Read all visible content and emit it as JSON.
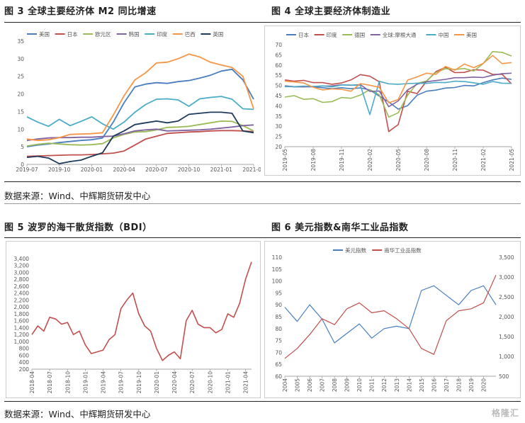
{
  "figures": {
    "fig3_title": "图 3  全球主要经济体 M2 同比增速",
    "fig4_title": "图 4  全球主要经济体制造业",
    "fig5_title": "图 5  波罗的海干散货指数（BDI）",
    "fig6_title": "图 6  美元指数&南华工业品指数"
  },
  "source_top": "数据来源：Wind、中辉期货研发中心",
  "source_bottom": "数据来源：Wind、中辉期货研发中心",
  "watermark": "格隆汇",
  "colors": {
    "blue": "#4a7ebf",
    "red": "#c0504d",
    "green": "#9bbb59",
    "purple": "#8064a2",
    "cyan": "#4bacc6",
    "orange": "#f79646",
    "navy": "#1f3a5c"
  },
  "chart_data": [
    {
      "id": "fig3",
      "type": "line",
      "title": "",
      "x": [
        "2019-07",
        "2019-08",
        "2019-09",
        "2019-10",
        "2019-11",
        "2019-12",
        "2020-01",
        "2020-02",
        "2020-03",
        "2020-04",
        "2020-05",
        "2020-06",
        "2020-07",
        "2020-08",
        "2020-09",
        "2020-10",
        "2020-11",
        "2020-12",
        "2021-01",
        "2021-02",
        "2021-03",
        "2021-04"
      ],
      "x_ticks": [
        "2019-07",
        "2019-10",
        "2020-01",
        "2020-04",
        "2020-07",
        "2020-10",
        "2021-01",
        "2021-04"
      ],
      "ylim": [
        0,
        35
      ],
      "y_ticks": [
        0,
        5,
        10,
        15,
        20,
        25,
        30,
        35
      ],
      "legend_position": "top",
      "series": [
        {
          "name": "美国",
          "color": "blue",
          "values": [
            5.0,
            5.5,
            5.8,
            6.2,
            6.5,
            6.8,
            7.0,
            7.5,
            12.0,
            17.5,
            22.0,
            22.8,
            23.2,
            23.0,
            23.5,
            23.8,
            24.5,
            25.3,
            26.5,
            27.0,
            24.0,
            18.5
          ]
        },
        {
          "name": "日本",
          "color": "red",
          "values": [
            2.3,
            2.4,
            2.5,
            2.6,
            2.7,
            2.7,
            2.8,
            3.0,
            3.2,
            3.8,
            5.5,
            7.2,
            8.0,
            8.8,
            9.0,
            9.2,
            9.3,
            9.5,
            9.6,
            9.6,
            9.5,
            9.3
          ]
        },
        {
          "name": "欧元区",
          "color": "green",
          "values": [
            5.2,
            5.7,
            6.0,
            5.8,
            5.6,
            5.5,
            5.6,
            5.9,
            7.5,
            8.5,
            9.2,
            9.3,
            9.8,
            10.5,
            10.6,
            10.8,
            11.3,
            11.8,
            12.3,
            12.2,
            11.0,
            9.5
          ]
        },
        {
          "name": "韩国",
          "color": "purple",
          "values": [
            6.8,
            7.2,
            7.5,
            7.6,
            7.6,
            7.7,
            7.7,
            7.9,
            8.0,
            8.7,
            9.5,
            9.8,
            10.0,
            9.5,
            9.6,
            9.7,
            9.8,
            10.0,
            10.3,
            10.6,
            11.0,
            11.2
          ]
        },
        {
          "name": "印度",
          "color": "cyan",
          "values": [
            13.5,
            12.0,
            10.8,
            12.8,
            11.0,
            12.2,
            13.5,
            11.5,
            10.0,
            12.0,
            14.8,
            17.0,
            18.5,
            18.6,
            18.3,
            16.5,
            18.6,
            19.0,
            19.3,
            18.5,
            15.8,
            15.6
          ]
        },
        {
          "name": "巴西",
          "color": "orange",
          "values": [
            7.2,
            6.8,
            7.0,
            7.6,
            8.5,
            8.6,
            8.7,
            9.0,
            14.0,
            19.5,
            24.0,
            26.0,
            28.8,
            29.0,
            30.0,
            31.3,
            30.5,
            29.0,
            28.2,
            27.5,
            25.0,
            15.8
          ]
        },
        {
          "name": "英国",
          "color": "navy",
          "values": [
            2.0,
            2.3,
            1.8,
            0.2,
            0.8,
            1.2,
            2.3,
            3.3,
            8.0,
            9.5,
            11.3,
            11.8,
            12.3,
            11.8,
            12.3,
            14.2,
            14.5,
            14.8,
            14.8,
            14.5,
            9.5,
            9.0
          ]
        }
      ]
    },
    {
      "id": "fig4",
      "type": "line",
      "title": "",
      "x": [
        "2019-05",
        "2019-06",
        "2019-07",
        "2019-08",
        "2019-09",
        "2019-10",
        "2019-11",
        "2019-12",
        "2020-01",
        "2020-02",
        "2020-03",
        "2020-04",
        "2020-05",
        "2020-06",
        "2020-07",
        "2020-08",
        "2020-09",
        "2020-10",
        "2020-11",
        "2020-12",
        "2021-01",
        "2021-02",
        "2021-03",
        "2021-04",
        "2021-05"
      ],
      "x_ticks": [
        "2019-05",
        "2019-08",
        "2019-11",
        "2020-02",
        "2020-05",
        "2020-08",
        "2020-11",
        "2021-02",
        "2021-05"
      ],
      "ylim": [
        20,
        70
      ],
      "y_ticks": [
        20,
        25,
        30,
        35,
        40,
        45,
        50,
        55,
        60,
        65,
        70
      ],
      "legend_position": "top",
      "series": [
        {
          "name": "日本",
          "color": "blue",
          "values": [
            49.8,
            49.3,
            49.4,
            49.3,
            48.9,
            48.4,
            48.9,
            48.4,
            48.8,
            47.8,
            44.8,
            41.9,
            38.4,
            40.1,
            45.2,
            47.2,
            47.7,
            48.7,
            49.0,
            50.0,
            49.8,
            51.4,
            52.7,
            53.6,
            53.0
          ]
        },
        {
          "name": "印度",
          "color": "red",
          "values": [
            52.7,
            52.1,
            52.5,
            51.4,
            51.4,
            50.6,
            51.2,
            52.7,
            55.3,
            54.5,
            51.8,
            27.4,
            30.8,
            47.2,
            46.0,
            52.0,
            56.8,
            58.9,
            56.3,
            56.4,
            57.7,
            57.5,
            55.4,
            55.5,
            50.8
          ]
        },
        {
          "name": "德国",
          "color": "green",
          "values": [
            44.3,
            45.0,
            43.2,
            43.5,
            41.7,
            42.1,
            44.1,
            43.7,
            45.3,
            48.0,
            45.4,
            34.5,
            36.6,
            45.2,
            51.0,
            52.2,
            56.4,
            58.2,
            57.8,
            58.3,
            57.1,
            60.7,
            66.6,
            66.2,
            64.4
          ]
        },
        {
          "name": "全球:摩根大通",
          "color": "purple",
          "values": [
            49.8,
            49.4,
            49.3,
            49.5,
            49.7,
            49.8,
            50.3,
            50.1,
            50.4,
            47.1,
            47.3,
            39.6,
            42.4,
            47.8,
            50.6,
            51.8,
            52.4,
            53.0,
            53.8,
            53.8,
            54.1,
            53.9,
            55.0,
            55.8,
            56.0
          ]
        },
        {
          "name": "中国",
          "color": "cyan",
          "values": [
            49.4,
            49.4,
            49.7,
            49.5,
            49.8,
            49.3,
            50.2,
            50.2,
            50.0,
            35.7,
            52.0,
            50.8,
            50.6,
            50.9,
            51.1,
            51.0,
            51.5,
            51.4,
            52.1,
            51.9,
            51.3,
            50.6,
            51.9,
            51.1,
            51.0
          ]
        },
        {
          "name": "美国",
          "color": "orange",
          "values": [
            52.1,
            51.7,
            51.2,
            49.1,
            47.8,
            48.3,
            48.1,
            47.2,
            50.9,
            50.1,
            49.1,
            41.5,
            43.1,
            52.6,
            54.2,
            56.0,
            55.4,
            59.3,
            57.5,
            60.5,
            58.7,
            60.8,
            64.7,
            60.7,
            61.2
          ]
        }
      ]
    },
    {
      "id": "fig5",
      "type": "line",
      "title": "",
      "x": [
        "2018-04",
        "2018-05",
        "2018-06",
        "2018-07",
        "2018-08",
        "2018-09",
        "2018-10",
        "2018-11",
        "2018-12",
        "2019-01",
        "2019-02",
        "2019-03",
        "2019-04",
        "2019-05",
        "2019-06",
        "2019-07",
        "2019-08",
        "2019-09",
        "2019-10",
        "2019-11",
        "2019-12",
        "2020-01",
        "2020-02",
        "2020-03",
        "2020-04",
        "2020-05",
        "2020-06",
        "2020-07",
        "2020-08",
        "2020-09",
        "2020-10",
        "2020-11",
        "2020-12",
        "2021-01",
        "2021-02",
        "2021-03",
        "2021-04",
        "2021-05"
      ],
      "x_ticks": [
        "2018-04",
        "2018-07",
        "2018-10",
        "2019-01",
        "2019-04",
        "2019-07",
        "2019-10",
        "2020-01",
        "2020-04",
        "2020-07",
        "2020-10",
        "2021-01",
        "2021-04"
      ],
      "ylim": [
        200,
        3600
      ],
      "y_ticks": [
        200,
        400,
        600,
        800,
        1000,
        1200,
        1400,
        1600,
        1800,
        2000,
        2200,
        2400,
        2600,
        2800,
        3000,
        3200,
        3400
      ],
      "y_tick_labels": [
        "200",
        "400",
        "600",
        "800",
        "1,000",
        "1,200",
        "1,400",
        "1,600",
        "1,800",
        "2,000",
        "2,200",
        "2,400",
        "2,600",
        "2,800",
        "3,000",
        "3,200",
        "3,400"
      ],
      "series": [
        {
          "name": "",
          "color": "red",
          "values": [
            1200,
            1450,
            1300,
            1700,
            1650,
            1500,
            1550,
            1200,
            1300,
            900,
            650,
            700,
            750,
            1050,
            1200,
            1950,
            2200,
            2400,
            1800,
            1450,
            1300,
            800,
            450,
            600,
            700,
            500,
            1600,
            1900,
            1500,
            1400,
            1400,
            1250,
            1350,
            1800,
            1700,
            2100,
            2800,
            3300
          ]
        }
      ]
    },
    {
      "id": "fig6",
      "type": "line",
      "title": "",
      "x": [
        "2004",
        "2005",
        "2006",
        "2007",
        "2008",
        "2009",
        "2010",
        "2011",
        "2012",
        "2013",
        "2014",
        "2015",
        "2016",
        "2017",
        "2018",
        "2019",
        "2020",
        "2021"
      ],
      "x_ticks": [
        "2004",
        "2005",
        "2006",
        "2007",
        "2008",
        "2009",
        "2010",
        "2011",
        "2012",
        "2013",
        "2014",
        "2015",
        "2016",
        "2017",
        "2018",
        "2019",
        "2020"
      ],
      "ylim_left": [
        60,
        110
      ],
      "y_ticks_left": [
        60,
        65,
        70,
        75,
        80,
        85,
        90,
        95,
        100,
        105,
        110
      ],
      "ylim_right": [
        500,
        3500
      ],
      "y_ticks_right": [
        500,
        1000,
        1500,
        2000,
        2500,
        3000,
        3500
      ],
      "y_tick_labels_right": [
        "500",
        "1,000",
        "1,500",
        "2,000",
        "2,500",
        "3,000",
        "3,500"
      ],
      "legend_position": "top",
      "series": [
        {
          "name": "美元指数",
          "color": "blue",
          "axis": "left",
          "values": [
            89,
            83,
            90,
            84,
            74,
            78,
            82,
            76,
            80,
            81,
            80,
            96,
            98,
            94,
            90,
            96,
            98,
            90
          ]
        },
        {
          "name": "南华工业品指数",
          "color": "red",
          "axis": "right",
          "values": [
            950,
            1200,
            1550,
            1950,
            1800,
            2200,
            2350,
            2100,
            2150,
            1950,
            1700,
            1200,
            1050,
            1900,
            2150,
            2200,
            2350,
            3050
          ]
        }
      ]
    }
  ]
}
